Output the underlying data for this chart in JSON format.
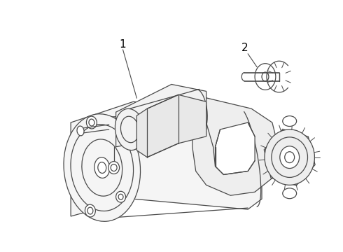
{
  "background_color": "#ffffff",
  "line_color": "#4a4a4a",
  "label_color": "#000000",
  "label_1": "1",
  "label_2": "2",
  "figsize": [
    4.9,
    3.6
  ],
  "dpi": 100,
  "lw": 0.9
}
